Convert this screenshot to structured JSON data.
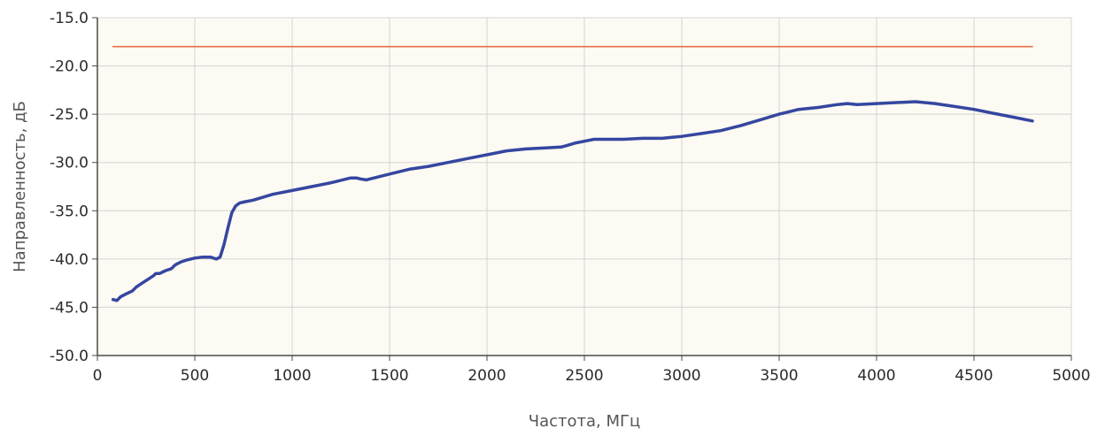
{
  "chart_data": {
    "type": "line",
    "title": "",
    "xlabel": "Частота, МГц",
    "ylabel": "Направленность, дБ",
    "xlim": [
      0,
      5000
    ],
    "ylim": [
      -50,
      -15
    ],
    "xticks": [
      0,
      500,
      1000,
      1500,
      2000,
      2500,
      3000,
      3500,
      4000,
      4500,
      5000
    ],
    "xtick_labels": [
      "0",
      "500",
      "1000",
      "1500",
      "2000",
      "2500",
      "3000",
      "3500",
      "4000",
      "4500",
      "5000"
    ],
    "yticks": [
      -15,
      -20,
      -25,
      -30,
      -35,
      -40,
      -45,
      -50
    ],
    "ytick_labels": [
      "-15.0",
      "-20.0",
      "-25.0",
      "-30.0",
      "-35.0",
      "-40.0",
      "-45.0",
      "-50.0"
    ],
    "grid": true,
    "legend": "none",
    "colors": {
      "plot_background": "#fcfaf2",
      "grid": "#d4d4d4",
      "axis": "#4a4a4a",
      "measured_line": "#3546a0",
      "limit_line": "#e8704a"
    },
    "series": [
      {
        "x": [
          80,
          4800
        ],
        "y": [
          -18,
          -18
        ]
      },
      {
        "x": [
          80,
          100,
          120,
          150,
          180,
          200,
          230,
          260,
          290,
          300,
          320,
          350,
          380,
          400,
          430,
          460,
          500,
          540,
          580,
          610,
          630,
          650,
          670,
          690,
          710,
          730,
          750,
          800,
          900,
          1000,
          1100,
          1200,
          1300,
          1330,
          1350,
          1380,
          1400,
          1500,
          1600,
          1700,
          1800,
          1900,
          2000,
          2100,
          2200,
          2300,
          2380,
          2400,
          2450,
          2500,
          2550,
          2600,
          2700,
          2800,
          2900,
          2950,
          3000,
          3100,
          3200,
          3300,
          3400,
          3500,
          3600,
          3700,
          3800,
          3850,
          3900,
          4000,
          4100,
          4200,
          4300,
          4400,
          4500,
          4600,
          4700,
          4800
        ],
        "y": [
          -44.2,
          -44.3,
          -43.9,
          -43.6,
          -43.3,
          -42.9,
          -42.5,
          -42.1,
          -41.7,
          -41.5,
          -41.5,
          -41.2,
          -41.0,
          -40.6,
          -40.3,
          -40.1,
          -39.9,
          -39.8,
          -39.8,
          -40.0,
          -39.8,
          -38.5,
          -36.8,
          -35.2,
          -34.5,
          -34.2,
          -34.1,
          -33.9,
          -33.3,
          -32.9,
          -32.5,
          -32.1,
          -31.6,
          -31.6,
          -31.7,
          -31.8,
          -31.7,
          -31.2,
          -30.7,
          -30.4,
          -30.0,
          -29.6,
          -29.2,
          -28.8,
          -28.6,
          -28.5,
          -28.4,
          -28.3,
          -28.0,
          -27.8,
          -27.6,
          -27.6,
          -27.6,
          -27.5,
          -27.5,
          -27.4,
          -27.3,
          -27.0,
          -26.7,
          -26.2,
          -25.6,
          -25.0,
          -24.5,
          -24.3,
          -24.0,
          -23.9,
          -24.0,
          -23.9,
          -23.8,
          -23.7,
          -23.9,
          -24.2,
          -24.5,
          -24.9,
          -25.3,
          -25.7
        ]
      }
    ]
  }
}
